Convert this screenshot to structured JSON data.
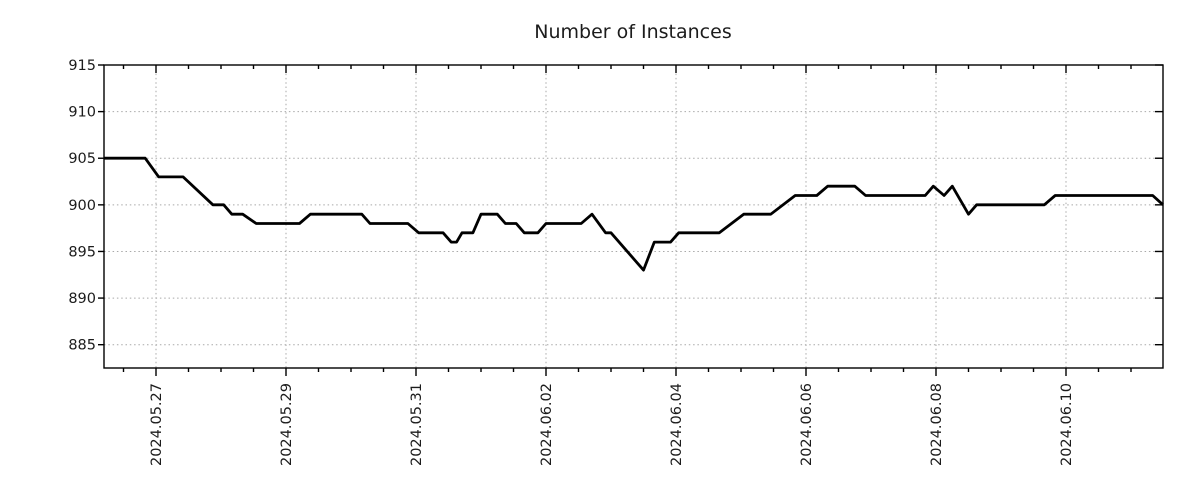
{
  "colors": {
    "line": "#000000",
    "grid": "#a9a9a9",
    "axis": "#000000",
    "text": "#1c1c1c",
    "background": "#ffffff"
  },
  "chart_data": {
    "type": "line",
    "title": "Number of Instances",
    "xlabel": "",
    "ylabel": "",
    "legend": "none",
    "grid": "dotted",
    "ylim": [
      882.5,
      915
    ],
    "y_ticks": [
      885,
      890,
      895,
      900,
      905,
      910,
      915
    ],
    "x_tick_labels": [
      "2024.05.27",
      "2024.05.29",
      "2024.05.31",
      "2024.06.02",
      "2024.06.04",
      "2024.06.06",
      "2024.06.08",
      "2024.06.10"
    ],
    "x_major_tick_interval_days": 2,
    "x_minor_tick_interval_hours": 12,
    "x_range": [
      "2024-05-26 05:00",
      "2024-06-11 12:00"
    ],
    "series": [
      {
        "name": "Number of Instances",
        "points": [
          {
            "t": "2024-05-26 05:00",
            "v": 905
          },
          {
            "t": "2024-05-26 20:00",
            "v": 905
          },
          {
            "t": "2024-05-27 01:00",
            "v": 903
          },
          {
            "t": "2024-05-27 10:00",
            "v": 903
          },
          {
            "t": "2024-05-27 21:00",
            "v": 900
          },
          {
            "t": "2024-05-28 01:00",
            "v": 900
          },
          {
            "t": "2024-05-28 04:00",
            "v": 899
          },
          {
            "t": "2024-05-28 08:00",
            "v": 899
          },
          {
            "t": "2024-05-28 13:00",
            "v": 898
          },
          {
            "t": "2024-05-29 05:00",
            "v": 898
          },
          {
            "t": "2024-05-29 09:00",
            "v": 899
          },
          {
            "t": "2024-05-30 04:00",
            "v": 899
          },
          {
            "t": "2024-05-30 07:00",
            "v": 898
          },
          {
            "t": "2024-05-30 21:00",
            "v": 898
          },
          {
            "t": "2024-05-31 01:00",
            "v": 897
          },
          {
            "t": "2024-05-31 10:00",
            "v": 897
          },
          {
            "t": "2024-05-31 13:00",
            "v": 896
          },
          {
            "t": "2024-05-31 15:00",
            "v": 896
          },
          {
            "t": "2024-05-31 17:00",
            "v": 897
          },
          {
            "t": "2024-05-31 21:00",
            "v": 897
          },
          {
            "t": "2024-06-01 00:00",
            "v": 899
          },
          {
            "t": "2024-06-01 06:00",
            "v": 899
          },
          {
            "t": "2024-06-01 09:00",
            "v": 898
          },
          {
            "t": "2024-06-01 13:00",
            "v": 898
          },
          {
            "t": "2024-06-01 16:00",
            "v": 897
          },
          {
            "t": "2024-06-01 21:00",
            "v": 897
          },
          {
            "t": "2024-06-02 00:00",
            "v": 898
          },
          {
            "t": "2024-06-02 13:00",
            "v": 898
          },
          {
            "t": "2024-06-02 17:00",
            "v": 899
          },
          {
            "t": "2024-06-02 22:00",
            "v": 897
          },
          {
            "t": "2024-06-03 00:00",
            "v": 897
          },
          {
            "t": "2024-06-03 12:00",
            "v": 893
          },
          {
            "t": "2024-06-03 16:00",
            "v": 896
          },
          {
            "t": "2024-06-03 22:00",
            "v": 896
          },
          {
            "t": "2024-06-04 01:00",
            "v": 897
          },
          {
            "t": "2024-06-04 16:00",
            "v": 897
          },
          {
            "t": "2024-06-05 01:00",
            "v": 899
          },
          {
            "t": "2024-06-05 11:00",
            "v": 899
          },
          {
            "t": "2024-06-05 20:00",
            "v": 901
          },
          {
            "t": "2024-06-06 04:00",
            "v": 901
          },
          {
            "t": "2024-06-06 08:00",
            "v": 902
          },
          {
            "t": "2024-06-06 18:00",
            "v": 902
          },
          {
            "t": "2024-06-06 22:00",
            "v": 901
          },
          {
            "t": "2024-06-07 20:00",
            "v": 901
          },
          {
            "t": "2024-06-07 23:00",
            "v": 902
          },
          {
            "t": "2024-06-08 03:00",
            "v": 901
          },
          {
            "t": "2024-06-08 06:00",
            "v": 902
          },
          {
            "t": "2024-06-08 12:00",
            "v": 899
          },
          {
            "t": "2024-06-08 15:00",
            "v": 900
          },
          {
            "t": "2024-06-09 16:00",
            "v": 900
          },
          {
            "t": "2024-06-09 20:00",
            "v": 901
          },
          {
            "t": "2024-06-11 08:00",
            "v": 901
          },
          {
            "t": "2024-06-11 12:00",
            "v": 900
          }
        ]
      }
    ]
  }
}
